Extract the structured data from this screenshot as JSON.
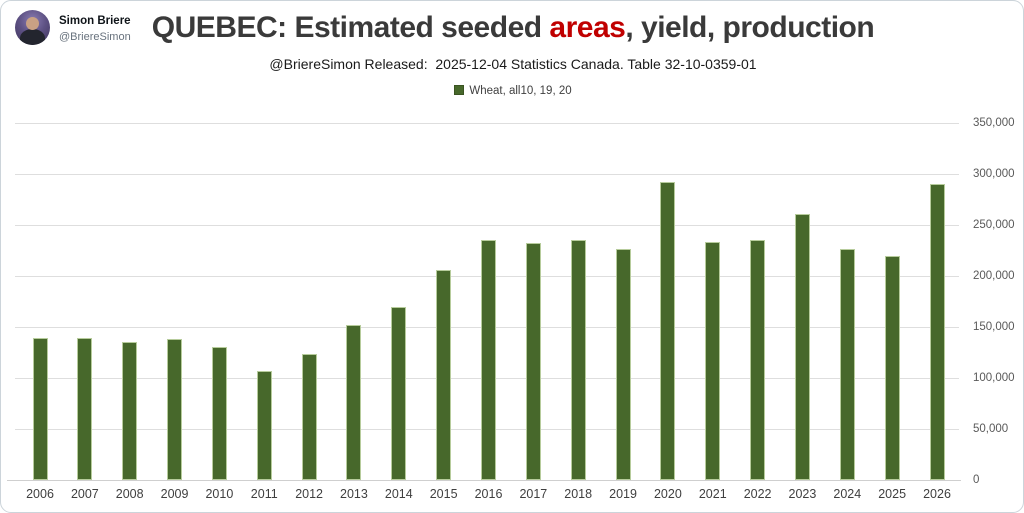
{
  "profile": {
    "name": "Simon Briere",
    "handle": "@BriereSimon"
  },
  "header": {
    "title_prefix": "QUEBEC: Estimated seeded ",
    "title_highlight": "areas",
    "title_suffix": ", yield, production",
    "subtitle": "@BriereSimon Released:  2025-12-04 Statistics Canada. Table 32-10-0359-01"
  },
  "legend": {
    "label": "Wheat, all10, 19, 20",
    "marker_color": "#47682b"
  },
  "colors": {
    "bar_fill": "#47682b",
    "bar_border": "#b7cc9c",
    "title_highlight": "#c00000",
    "gridline": "#dedede",
    "axis_text": "#595959",
    "card_border": "#ccd4da"
  },
  "chart_data": {
    "type": "bar",
    "title": "QUEBEC: Estimated seeded areas, yield, production",
    "subtitle": "@BriereSimon Released: 2025-12-04 Statistics Canada. Table 32-10-0359-01",
    "series_name": "Wheat, all10, 19, 20",
    "categories": [
      "2006",
      "2007",
      "2008",
      "2009",
      "2010",
      "2011",
      "2012",
      "2013",
      "2014",
      "2015",
      "2016",
      "2017",
      "2018",
      "2019",
      "2020",
      "2021",
      "2022",
      "2023",
      "2024",
      "2025",
      "2026"
    ],
    "values": [
      140000,
      140000,
      136000,
      139000,
      130500,
      107000,
      124000,
      152000,
      170500,
      206500,
      236000,
      232500,
      235500,
      226500,
      292500,
      234000,
      235500,
      261500,
      227000,
      220500,
      291000
    ],
    "xlabel": "",
    "ylabel": "",
    "ylim": [
      0,
      350000
    ],
    "ytick_interval": 50000,
    "ytick_labels": [
      "0",
      "50,000",
      "100,000",
      "150,000",
      "200,000",
      "250,000",
      "300,000",
      "350,000"
    ],
    "grid": "horizontal",
    "legend_position": "top-center",
    "yaxis_side": "right"
  }
}
